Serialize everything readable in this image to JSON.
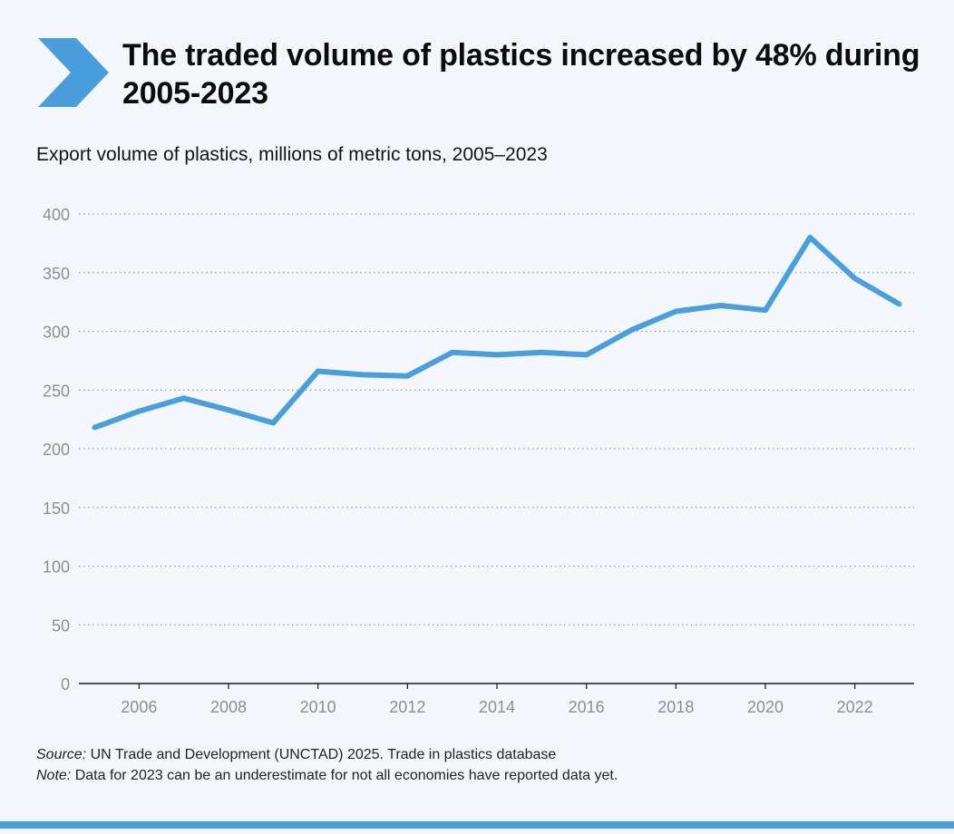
{
  "header": {
    "title": "The traded volume of plastics increased by 48% during 2005-2023",
    "accent_color": "#4a9edb",
    "icon": "chevron-right-icon"
  },
  "chart_data": {
    "type": "line",
    "title": "Export volume of plastics, millions of metric tons, 2005–2023",
    "xlabel": "",
    "ylabel": "",
    "x": [
      2005,
      2006,
      2007,
      2008,
      2009,
      2010,
      2011,
      2012,
      2013,
      2014,
      2015,
      2016,
      2017,
      2018,
      2019,
      2020,
      2021,
      2022,
      2023
    ],
    "x_tick_labels": [
      "2006",
      "2008",
      "2010",
      "2012",
      "2014",
      "2016",
      "2018",
      "2020",
      "2022"
    ],
    "y_ticks": [
      "0",
      "50",
      "100",
      "150",
      "200",
      "250",
      "300",
      "350",
      "400"
    ],
    "ylim": [
      0,
      400
    ],
    "xlim": [
      2005,
      2023
    ],
    "grid": "horizontal dotted",
    "series": [
      {
        "values": [
          218,
          232,
          243,
          233,
          222,
          266,
          263,
          262,
          282,
          280,
          282,
          280,
          301,
          317,
          322,
          318,
          380,
          345,
          323
        ],
        "color": "#4a9edb"
      }
    ]
  },
  "footer": {
    "source_label": "Source:",
    "source_text": " UN Trade and Development (UNCTAD) 2025. Trade in plastics database",
    "note_label": "Note:",
    "note_text": " Data for 2023 can be an underestimate for not all economies have reported data yet.",
    "bar_color": "#4a9edb"
  }
}
